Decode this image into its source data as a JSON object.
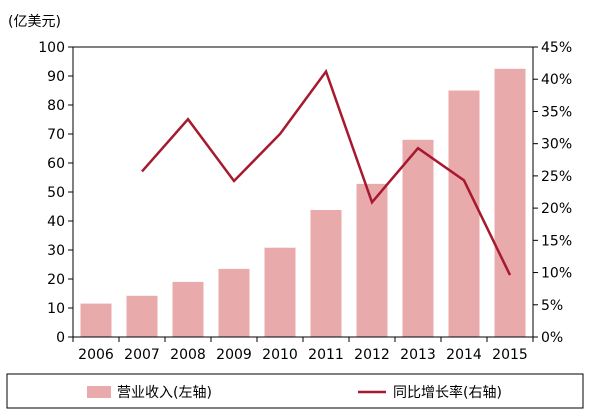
{
  "chart_data": {
    "type": "bar",
    "categories": [
      "2006",
      "2007",
      "2008",
      "2009",
      "2010",
      "2011",
      "2012",
      "2013",
      "2014",
      "2015"
    ],
    "unit_label": "(亿美元)",
    "y_left": {
      "min": 0,
      "max": 100,
      "step": 10,
      "ticks": [
        "0",
        "10",
        "20",
        "30",
        "40",
        "50",
        "60",
        "70",
        "80",
        "90",
        "100"
      ]
    },
    "y_right": {
      "min": 0,
      "max": 45,
      "step": 5,
      "ticks": [
        "0%",
        "5%",
        "10%",
        "15%",
        "20%",
        "25%",
        "30%",
        "35%",
        "40%",
        "45%"
      ]
    },
    "series": [
      {
        "name": "营业收入(左轴)",
        "type": "bar",
        "axis": "left",
        "color": "#e8aaaa",
        "values": [
          11.5,
          14.2,
          19.0,
          23.5,
          30.8,
          43.8,
          52.8,
          68.0,
          85.0,
          92.5
        ]
      },
      {
        "name": "同比增长率(右轴)",
        "type": "line",
        "axis": "right",
        "color": "#a6192e",
        "values": [
          null,
          25.7,
          33.8,
          24.2,
          31.5,
          41.2,
          20.9,
          29.3,
          24.3,
          9.6
        ]
      }
    ],
    "legend": {
      "position": "bottom"
    },
    "grid": false
  }
}
